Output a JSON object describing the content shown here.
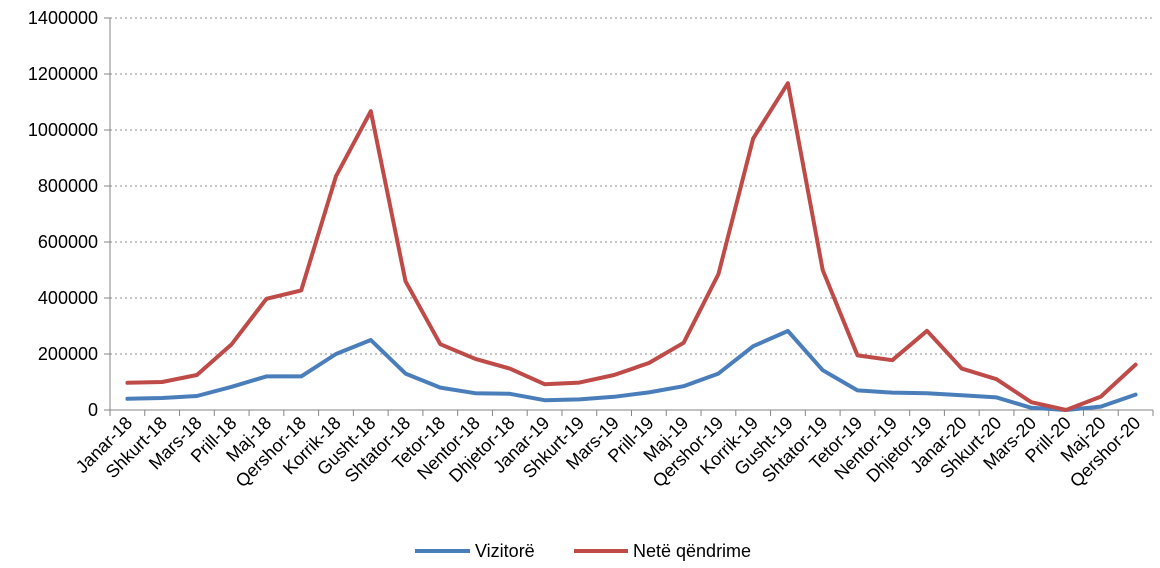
{
  "chart_data": {
    "type": "line",
    "categories": [
      "Janar-18",
      "Shkurt-18",
      "Mars-18",
      "Prill-18",
      "Maj-18",
      "Qershor-18",
      "Korrik-18",
      "Gusht-18",
      "Shtator-18",
      "Tetor-18",
      "Nentor-18",
      "Dhjetor-18",
      "Janar-19",
      "Shkurt-19",
      "Mars-19",
      "Prill-19",
      "Maj-19",
      "Qershor-19",
      "Korrik-19",
      "Gusht-19",
      "Shtator-19",
      "Tetor-19",
      "Nentor-19",
      "Dhjetor-19",
      "Janar-20",
      "Shkurt-20",
      "Mars-20",
      "Prill-20",
      "Maj-20",
      "Qershor-20"
    ],
    "series": [
      {
        "name": "Vizitorë",
        "color": "#4a7ebb",
        "values": [
          40000,
          43000,
          50000,
          83000,
          120000,
          120000,
          200000,
          250000,
          130000,
          80000,
          60000,
          58000,
          35000,
          38000,
          47000,
          63000,
          85000,
          130000,
          228000,
          282000,
          142000,
          70000,
          62000,
          60000,
          53000,
          45000,
          8000,
          0,
          12000,
          55000
        ]
      },
      {
        "name": "Netë qëndrime",
        "color": "#be4b48",
        "values": [
          97000,
          100000,
          125000,
          235000,
          397000,
          427000,
          835000,
          1067000,
          460000,
          235000,
          183000,
          148000,
          92000,
          98000,
          125000,
          168000,
          240000,
          485000,
          970000,
          1167000,
          500000,
          195000,
          178000,
          283000,
          148000,
          110000,
          28000,
          0,
          48000,
          162000
        ]
      }
    ],
    "ylim": [
      0,
      1400000
    ],
    "yticks": [
      0,
      200000,
      400000,
      600000,
      800000,
      1000000,
      1200000,
      1400000
    ],
    "grid": true,
    "legend": "bottom"
  }
}
